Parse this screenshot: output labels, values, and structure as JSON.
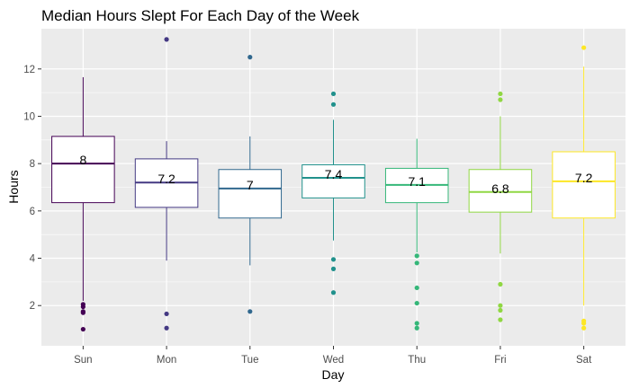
{
  "chart_data": {
    "type": "boxplot",
    "title": "Median Hours Slept For Each Day of the Week",
    "xlabel": "Day",
    "ylabel": "Hours",
    "ylim": [
      0.3,
      13.7
    ],
    "yticks": [
      2,
      4,
      6,
      8,
      10,
      12
    ],
    "grid": true,
    "legend": "none",
    "categories": [
      "Sun",
      "Mon",
      "Tue",
      "Wed",
      "Thu",
      "Fri",
      "Sat"
    ],
    "boxes": [
      {
        "category": "Sun",
        "color": "#440154",
        "min": 2.2,
        "q1": 6.35,
        "median": 8.0,
        "q3": 9.15,
        "max": 11.65,
        "label": "8",
        "outliers": [
          1.0,
          1.7,
          1.75,
          1.95,
          2.05
        ]
      },
      {
        "category": "Mon",
        "color": "#443983",
        "min": 3.9,
        "q1": 6.15,
        "median": 7.2,
        "q3": 8.2,
        "max": 8.95,
        "label": "7.2",
        "outliers": [
          1.05,
          1.65,
          13.25
        ]
      },
      {
        "category": "Tue",
        "color": "#31688e",
        "min": 3.7,
        "q1": 5.7,
        "median": 6.95,
        "q3": 7.75,
        "max": 9.15,
        "label": "7",
        "outliers": [
          1.75,
          12.5
        ]
      },
      {
        "category": "Wed",
        "color": "#21918c",
        "min": 4.75,
        "q1": 6.55,
        "median": 7.4,
        "q3": 7.95,
        "max": 9.85,
        "label": "7.4",
        "outliers": [
          2.55,
          3.55,
          3.95,
          10.5,
          10.95
        ]
      },
      {
        "category": "Thu",
        "color": "#35b779",
        "min": 4.25,
        "q1": 6.35,
        "median": 7.1,
        "q3": 7.8,
        "max": 9.05,
        "label": "7.1",
        "outliers": [
          1.05,
          1.25,
          2.1,
          2.75,
          3.8,
          4.1
        ]
      },
      {
        "category": "Fri",
        "color": "#90d743",
        "min": 4.2,
        "q1": 5.95,
        "median": 6.8,
        "q3": 7.75,
        "max": 10.0,
        "label": "6.8",
        "outliers": [
          1.4,
          1.8,
          2.0,
          2.9,
          10.7,
          10.95
        ]
      },
      {
        "category": "Sat",
        "color": "#fde725",
        "min": 2.0,
        "q1": 5.7,
        "median": 7.25,
        "q3": 8.5,
        "max": 12.1,
        "label": "7.2",
        "outliers": [
          1.05,
          1.25,
          1.35,
          12.9
        ]
      }
    ]
  }
}
